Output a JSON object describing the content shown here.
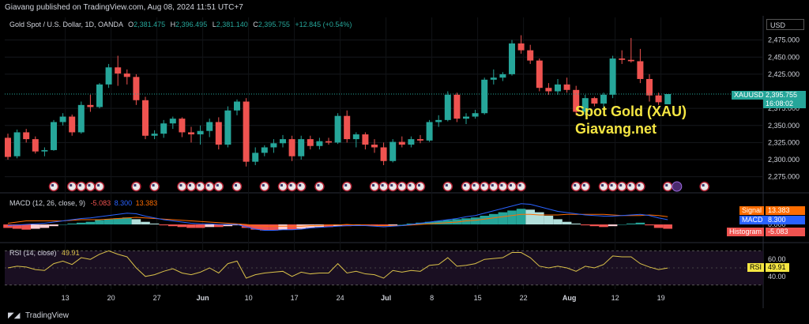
{
  "header": {
    "published": "Giavang published on TradingView.com, Aug 08, 2024 11:51 UTC+7"
  },
  "legend": {
    "symbol": "Gold Spot / U.S. Dollar, 1D, OANDA",
    "o_label": "O",
    "o_value": "2,381.475",
    "h_label": "H",
    "h_value": "2,396.495",
    "l_label": "L",
    "l_value": "2,381.140",
    "c_label": "C",
    "c_value": "2,395.755",
    "change": "+12.845 (+0.54%)"
  },
  "currency_button": "USD",
  "price_axis": {
    "ticks": [
      "2,475.000",
      "2,450.000",
      "2,425.000",
      "2,375.000",
      "2,350.000",
      "2,325.000",
      "2,300.000",
      "2,275.000"
    ],
    "symbol_tag": "XAUUSD",
    "last_price": "2,395.755",
    "countdown": "16:08:02"
  },
  "watermark": {
    "line1": "Spot Gold (XAU)",
    "line2": "Giavang.net"
  },
  "macd": {
    "label": "MACD (12, 26, close, 9)",
    "v1": "-5.083",
    "v2": "8.300",
    "v3": "13.383",
    "signal_label": "Signal",
    "signal_value": "13.383",
    "macd_label": "MACD",
    "macd_value": "8.300",
    "hist_label": "Histogram",
    "hist_value": "-5.083",
    "zero_tick": "0.000"
  },
  "rsi": {
    "label": "RSI (14, close)",
    "value": "49.91",
    "tick_high": "60.00",
    "tick_low": "40.00",
    "tag_label": "RSI",
    "tag_value": "49.91"
  },
  "time_axis": {
    "labels": [
      "13",
      "20",
      "27",
      "Jun",
      "10",
      "17",
      "24",
      "Jul",
      "8",
      "15",
      "22",
      "Aug",
      "12",
      "19"
    ]
  },
  "footer": {
    "brand": "TradingView"
  },
  "colors": {
    "up": "#26a69a",
    "down": "#ef5350",
    "macd_line": "#2962ff",
    "signal_line": "#ff6d00",
    "rsi_line": "#d9c049",
    "watermark": "#f5e642"
  },
  "chart_data": {
    "type": "candlestick",
    "timeframe": "1D",
    "y_axis": {
      "min": 2270,
      "max": 2485
    },
    "candles": [
      [
        2332,
        2338,
        2300,
        2304
      ],
      [
        2305,
        2344,
        2302,
        2340
      ],
      [
        2340,
        2345,
        2325,
        2330
      ],
      [
        2330,
        2334,
        2309,
        2312
      ],
      [
        2312,
        2318,
        2305,
        2314
      ],
      [
        2314,
        2358,
        2313,
        2355
      ],
      [
        2355,
        2368,
        2350,
        2363
      ],
      [
        2363,
        2366,
        2335,
        2340
      ],
      [
        2340,
        2385,
        2338,
        2380
      ],
      [
        2380,
        2395,
        2370,
        2377
      ],
      [
        2377,
        2412,
        2375,
        2410
      ],
      [
        2410,
        2440,
        2405,
        2435
      ],
      [
        2435,
        2452,
        2408,
        2426
      ],
      [
        2426,
        2432,
        2410,
        2421
      ],
      [
        2421,
        2425,
        2380,
        2387
      ],
      [
        2387,
        2392,
        2330,
        2335
      ],
      [
        2335,
        2343,
        2330,
        2338
      ],
      [
        2338,
        2358,
        2332,
        2353
      ],
      [
        2353,
        2363,
        2345,
        2360
      ],
      [
        2360,
        2362,
        2333,
        2340
      ],
      [
        2340,
        2348,
        2325,
        2337
      ],
      [
        2337,
        2350,
        2322,
        2342
      ],
      [
        2342,
        2360,
        2333,
        2355
      ],
      [
        2355,
        2362,
        2315,
        2322
      ],
      [
        2322,
        2378,
        2318,
        2372
      ],
      [
        2372,
        2388,
        2365,
        2385
      ],
      [
        2385,
        2390,
        2290,
        2297
      ],
      [
        2297,
        2318,
        2292,
        2310
      ],
      [
        2310,
        2321,
        2305,
        2318
      ],
      [
        2318,
        2330,
        2310,
        2324
      ],
      [
        2324,
        2336,
        2318,
        2330
      ],
      [
        2330,
        2335,
        2298,
        2305
      ],
      [
        2305,
        2335,
        2300,
        2330
      ],
      [
        2330,
        2335,
        2315,
        2320
      ],
      [
        2320,
        2332,
        2315,
        2327
      ],
      [
        2327,
        2332,
        2322,
        2325
      ],
      [
        2325,
        2368,
        2323,
        2364
      ],
      [
        2364,
        2372,
        2325,
        2330
      ],
      [
        2330,
        2340,
        2318,
        2337
      ],
      [
        2337,
        2340,
        2315,
        2322
      ],
      [
        2322,
        2330,
        2310,
        2318
      ],
      [
        2318,
        2325,
        2292,
        2298
      ],
      [
        2298,
        2330,
        2296,
        2326
      ],
      [
        2326,
        2334,
        2318,
        2322
      ],
      [
        2322,
        2334,
        2318,
        2330
      ],
      [
        2330,
        2336,
        2324,
        2328
      ],
      [
        2328,
        2358,
        2326,
        2355
      ],
      [
        2355,
        2365,
        2348,
        2358
      ],
      [
        2358,
        2400,
        2356,
        2395
      ],
      [
        2395,
        2398,
        2355,
        2360
      ],
      [
        2360,
        2368,
        2352,
        2363
      ],
      [
        2363,
        2373,
        2360,
        2368
      ],
      [
        2368,
        2420,
        2366,
        2417
      ],
      [
        2417,
        2432,
        2410,
        2420
      ],
      [
        2420,
        2428,
        2415,
        2425
      ],
      [
        2425,
        2475,
        2423,
        2470
      ],
      [
        2470,
        2482,
        2455,
        2460
      ],
      [
        2460,
        2468,
        2440,
        2445
      ],
      [
        2445,
        2448,
        2400,
        2405
      ],
      [
        2405,
        2412,
        2395,
        2400
      ],
      [
        2400,
        2418,
        2395,
        2410
      ],
      [
        2410,
        2420,
        2398,
        2402
      ],
      [
        2402,
        2408,
        2365,
        2370
      ],
      [
        2370,
        2395,
        2365,
        2390
      ],
      [
        2390,
        2392,
        2378,
        2382
      ],
      [
        2382,
        2398,
        2375,
        2395
      ],
      [
        2395,
        2452,
        2390,
        2448
      ],
      [
        2448,
        2460,
        2440,
        2446
      ],
      [
        2446,
        2478,
        2442,
        2444
      ],
      [
        2444,
        2462,
        2412,
        2418
      ],
      [
        2418,
        2425,
        2385,
        2394
      ],
      [
        2394,
        2398,
        2380,
        2384
      ],
      [
        2381,
        2396,
        2381,
        2396
      ]
    ],
    "macd_hist": [
      -4,
      -5,
      -6,
      -5,
      -4,
      -2,
      0,
      1,
      2,
      3,
      5,
      6,
      7,
      8,
      6,
      3,
      1,
      -1,
      -2,
      -3,
      -4,
      -4,
      -3,
      -3,
      -2,
      -1,
      -4,
      -6,
      -7,
      -7,
      -6,
      -6,
      -5,
      -4,
      -3,
      -3,
      -2,
      -2,
      -1,
      -1,
      -1,
      -2,
      -1,
      0,
      1,
      2,
      3,
      4,
      5,
      6,
      7,
      8,
      10,
      12,
      14,
      16,
      18,
      17,
      14,
      10,
      6,
      3,
      1,
      -1,
      -2,
      -3,
      -2,
      0,
      1,
      2,
      -1,
      -4,
      -5
    ],
    "macd_line": [
      -2,
      -1,
      0,
      1,
      2,
      4,
      6,
      8,
      10,
      11,
      13,
      15,
      17,
      19,
      18,
      14,
      11,
      8,
      6,
      4,
      2,
      1,
      1,
      0,
      0,
      0,
      -4,
      -8,
      -10,
      -10,
      -9,
      -9,
      -8,
      -6,
      -5,
      -4,
      -3,
      -2,
      -2,
      -2,
      -3,
      -4,
      -3,
      -2,
      0,
      2,
      4,
      6,
      8,
      10,
      13,
      15,
      19,
      23,
      27,
      31,
      35,
      34,
      30,
      26,
      22,
      20,
      18,
      16,
      15,
      14,
      14,
      15,
      16,
      17,
      15,
      11,
      8
    ],
    "signal_line": [
      2,
      4,
      6,
      6,
      6,
      6,
      6,
      7,
      8,
      8,
      8,
      9,
      10,
      11,
      12,
      11,
      10,
      9,
      8,
      7,
      6,
      5,
      4,
      3,
      2,
      1,
      0,
      -2,
      -3,
      -3,
      -3,
      -3,
      -3,
      -2,
      -2,
      -1,
      -1,
      0,
      -1,
      -1,
      -2,
      -2,
      -2,
      -2,
      -1,
      0,
      1,
      2,
      3,
      4,
      6,
      7,
      9,
      11,
      13,
      15,
      17,
      17,
      16,
      16,
      16,
      17,
      17,
      17,
      17,
      17,
      16,
      15,
      15,
      15,
      16,
      15,
      13
    ],
    "rsi": [
      50,
      52,
      51,
      48,
      47,
      55,
      58,
      54,
      62,
      60,
      66,
      70,
      66,
      63,
      50,
      40,
      42,
      46,
      49,
      44,
      42,
      45,
      50,
      44,
      55,
      58,
      38,
      42,
      44,
      45,
      46,
      40,
      45,
      43,
      44,
      44,
      55,
      44,
      46,
      43,
      42,
      38,
      47,
      45,
      47,
      46,
      53,
      54,
      62,
      52,
      53,
      55,
      60,
      61,
      62,
      68,
      68,
      62,
      52,
      50,
      52,
      50,
      46,
      52,
      50,
      54,
      64,
      63,
      63,
      55,
      51,
      48,
      49.91
    ],
    "rsi_levels": [
      70,
      60,
      50,
      40,
      30
    ]
  }
}
